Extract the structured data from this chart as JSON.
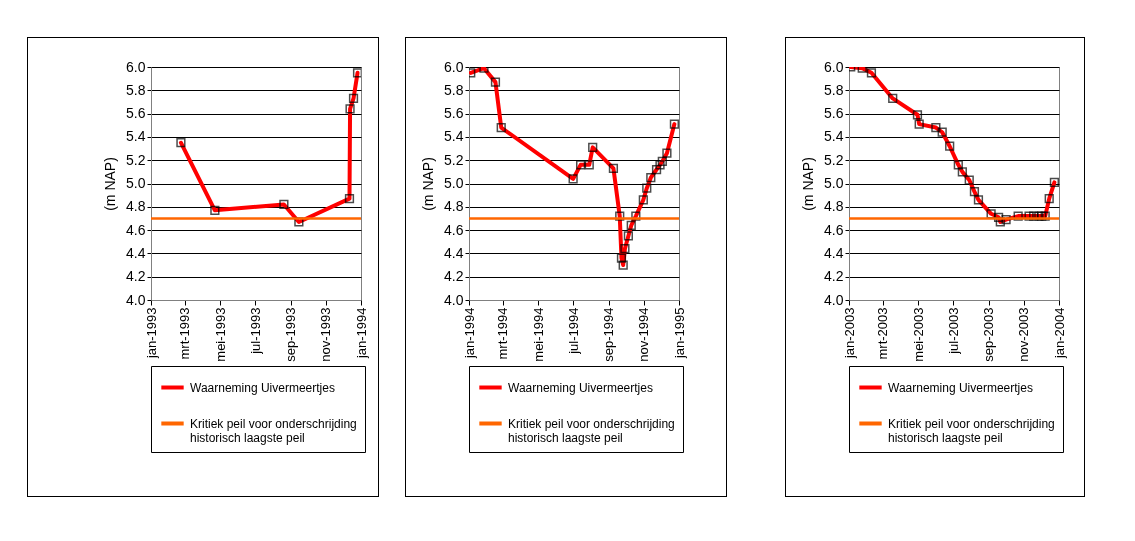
{
  "chart_data": [
    {
      "type": "line",
      "ylabel": "(m NAP)",
      "xlim": [
        "1993-01-01",
        "1994-01-01"
      ],
      "xticks": [
        {
          "value": "1993-01-01",
          "label": "jan-1993"
        },
        {
          "value": "1993-03-01",
          "label": "mrt-1993"
        },
        {
          "value": "1993-05-01",
          "label": "mei-1993"
        },
        {
          "value": "1993-07-01",
          "label": "jul-1993"
        },
        {
          "value": "1993-09-01",
          "label": "sep-1993"
        },
        {
          "value": "1993-11-01",
          "label": "nov-1993"
        },
        {
          "value": "1994-01-01",
          "label": "jan-1994"
        }
      ],
      "ylim": [
        4,
        6
      ],
      "yticks": [
        {
          "value": 4,
          "label": "4.0"
        },
        {
          "value": 4.2,
          "label": "4.2"
        },
        {
          "value": 4.4,
          "label": "4.4"
        },
        {
          "value": 4.6,
          "label": "4.6"
        },
        {
          "value": 4.8,
          "label": "4.8"
        },
        {
          "value": 5,
          "label": "5.0"
        },
        {
          "value": 5.2,
          "label": "5.2"
        },
        {
          "value": 5.4,
          "label": "5.4"
        },
        {
          "value": 5.6,
          "label": "5.6"
        },
        {
          "value": 5.8,
          "label": "5.8"
        },
        {
          "value": 6,
          "label": "6.0"
        }
      ],
      "grid": "y",
      "legend": "bottom",
      "marker": "square",
      "series": [
        {
          "name": "Waarneming Uivermeertjes",
          "color": "#ff0000",
          "x": [
            "1993-02-22",
            "1993-04-22",
            "1993-08-20",
            "1993-09-15",
            "1993-12-12",
            "1993-12-13",
            "1993-12-19",
            "1993-12-26"
          ],
          "values": [
            5.35,
            4.77,
            4.82,
            4.67,
            4.87,
            5.64,
            5.73,
            5.95
          ]
        }
      ],
      "ref_lines": [
        {
          "axis": "y",
          "value": 4.7,
          "label": "Kritiek peil voor onderschrijding historisch laagste peil",
          "color": "#ff6600"
        }
      ]
    },
    {
      "type": "line",
      "ylabel": "(m NAP)",
      "xlim": [
        "1994-01-01",
        "1995-01-01"
      ],
      "xticks": [
        {
          "value": "1994-01-01",
          "label": "jan-1994"
        },
        {
          "value": "1994-03-01",
          "label": "mrt-1994"
        },
        {
          "value": "1994-05-01",
          "label": "mei-1994"
        },
        {
          "value": "1994-07-01",
          "label": "jul-1994"
        },
        {
          "value": "1994-09-01",
          "label": "sep-1994"
        },
        {
          "value": "1994-11-01",
          "label": "nov-1994"
        },
        {
          "value": "1995-01-01",
          "label": "jan-1995"
        }
      ],
      "ylim": [
        4,
        6
      ],
      "yticks": [
        {
          "value": 4,
          "label": "4.0"
        },
        {
          "value": 4.2,
          "label": "4.2"
        },
        {
          "value": 4.4,
          "label": "4.4"
        },
        {
          "value": 4.6,
          "label": "4.6"
        },
        {
          "value": 4.8,
          "label": "4.8"
        },
        {
          "value": 5,
          "label": "5.0"
        },
        {
          "value": 5.2,
          "label": "5.2"
        },
        {
          "value": 5.4,
          "label": "5.4"
        },
        {
          "value": 5.6,
          "label": "5.6"
        },
        {
          "value": 5.8,
          "label": "5.8"
        },
        {
          "value": 6,
          "label": "6.0"
        }
      ],
      "grid": "y",
      "legend": "bottom",
      "marker": "square",
      "series": [
        {
          "name": "Waarneming Uivermeertjes",
          "color": "#ff0000",
          "x": [
            "1994-01-04",
            "1994-01-27",
            "1994-02-16",
            "1994-02-26",
            "1994-07-01",
            "1994-07-14",
            "1994-07-29",
            "1994-08-04",
            "1994-09-09",
            "1994-09-20",
            "1994-09-23",
            "1994-09-26",
            "1994-09-29",
            "1994-10-05",
            "1994-10-10",
            "1994-10-18",
            "1994-10-31",
            "1994-11-06",
            "1994-11-13",
            "1994-11-23",
            "1994-11-29",
            "1994-12-03",
            "1994-12-11",
            "1994-12-24"
          ],
          "values": [
            5.95,
            5.99,
            5.87,
            5.48,
            5.04,
            5.16,
            5.16,
            5.31,
            5.13,
            4.72,
            4.36,
            4.3,
            4.44,
            4.55,
            4.64,
            4.72,
            4.86,
            4.96,
            5.05,
            5.12,
            5.16,
            5.19,
            5.26,
            5.51
          ]
        }
      ],
      "ref_lines": [
        {
          "axis": "y",
          "value": 4.7,
          "label": "Kritiek peil voor onderschrijding historisch laagste peil",
          "color": "#ff6600"
        }
      ]
    },
    {
      "type": "line",
      "ylabel": "(m NAP)",
      "xlim": [
        "2003-01-01",
        "2004-01-01"
      ],
      "xticks": [
        {
          "value": "2003-01-01",
          "label": "jan-2003"
        },
        {
          "value": "2003-03-01",
          "label": "mrt-2003"
        },
        {
          "value": "2003-05-01",
          "label": "mei-2003"
        },
        {
          "value": "2003-07-01",
          "label": "jul-2003"
        },
        {
          "value": "2003-09-01",
          "label": "sep-2003"
        },
        {
          "value": "2003-11-01",
          "label": "nov-2003"
        },
        {
          "value": "2004-01-01",
          "label": "jan-2004"
        }
      ],
      "ylim": [
        4,
        6
      ],
      "yticks": [
        {
          "value": 4,
          "label": "4.0"
        },
        {
          "value": 4.2,
          "label": "4.2"
        },
        {
          "value": 4.4,
          "label": "4.4"
        },
        {
          "value": 4.6,
          "label": "4.6"
        },
        {
          "value": 4.8,
          "label": "4.8"
        },
        {
          "value": 5,
          "label": "5.0"
        },
        {
          "value": 5.2,
          "label": "5.2"
        },
        {
          "value": 5.4,
          "label": "5.4"
        },
        {
          "value": 5.6,
          "label": "5.6"
        },
        {
          "value": 5.8,
          "label": "5.8"
        },
        {
          "value": 6,
          "label": "6.0"
        }
      ],
      "grid": "y",
      "legend": "bottom",
      "marker": "square",
      "series": [
        {
          "name": "Waarneming Uivermeertjes",
          "color": "#ff0000",
          "x": [
            "2003-01-04",
            "2003-01-24",
            "2003-02-09",
            "2003-03-18",
            "2003-04-30",
            "2003-05-03",
            "2003-06-01",
            "2003-06-12",
            "2003-06-25",
            "2003-07-10",
            "2003-07-17",
            "2003-07-29",
            "2003-08-07",
            "2003-08-14",
            "2003-09-05",
            "2003-09-18",
            "2003-09-21",
            "2003-10-01",
            "2003-10-22",
            "2003-11-10",
            "2003-11-18",
            "2003-11-27",
            "2003-12-02",
            "2003-12-08",
            "2003-12-15",
            "2003-12-24"
          ],
          "values": [
            6.0,
            5.99,
            5.95,
            5.73,
            5.59,
            5.51,
            5.48,
            5.44,
            5.32,
            5.16,
            5.1,
            5.03,
            4.93,
            4.86,
            4.74,
            4.71,
            4.67,
            4.69,
            4.72,
            4.72,
            4.72,
            4.72,
            4.72,
            4.72,
            4.87,
            5.01
          ]
        }
      ],
      "ref_lines": [
        {
          "axis": "y",
          "value": 4.7,
          "label": "Kritiek peil voor onderschrijding historisch laagste peil",
          "color": "#ff6600"
        }
      ]
    }
  ]
}
